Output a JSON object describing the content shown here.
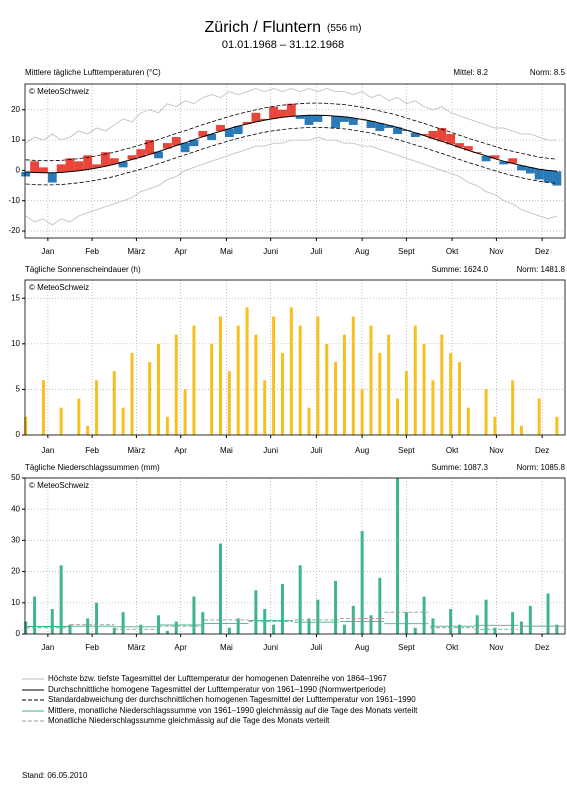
{
  "header": {
    "title": "Zürich / Fluntern",
    "elevation": "(556 m)",
    "subtitle": "01.01.1968 – 31.12.1968"
  },
  "chart_data": [
    {
      "type": "anomaly",
      "title": "Mittlere tägliche Lufttemperaturen (°C)",
      "stats": [
        "Mittel: 8.2",
        "Norm: 8.5"
      ],
      "note": "© MeteoSchweiz",
      "x": [
        1,
        7,
        13,
        19,
        25,
        31,
        37,
        43,
        49,
        55,
        61,
        67,
        73,
        79,
        85,
        91,
        97,
        103,
        109,
        115,
        121,
        127,
        133,
        139,
        145,
        151,
        157,
        163,
        169,
        175,
        181,
        187,
        193,
        199,
        205,
        211,
        217,
        223,
        229,
        235,
        241,
        247,
        253,
        259,
        265,
        271,
        277,
        283,
        289,
        295,
        301,
        307,
        313,
        319,
        325,
        331,
        337,
        343,
        349,
        355,
        361
      ],
      "values": [
        -2,
        3,
        1,
        -4,
        2,
        4,
        3,
        5,
        2,
        6,
        4,
        1,
        5,
        7,
        10,
        4,
        9,
        11,
        6,
        8,
        13,
        10,
        15,
        11,
        12,
        16,
        19,
        17,
        21,
        20,
        22,
        17,
        15,
        16,
        18,
        14,
        16,
        15,
        17,
        14,
        13,
        14,
        12,
        13,
        11,
        12,
        13,
        14,
        12,
        9,
        8,
        6,
        3,
        5,
        2,
        4,
        0,
        -1,
        -3,
        -4,
        -5
      ],
      "normal": [
        -0.5,
        -0.7,
        -0.8,
        -0.8,
        -0.7,
        -0.4,
        -0.1,
        0.3,
        0.8,
        1.4,
        2.0,
        2.8,
        3.6,
        4.4,
        5.3,
        6.2,
        7.2,
        8.2,
        9.1,
        10.1,
        11.1,
        12.0,
        12.9,
        13.8,
        14.6,
        15.3,
        16.0,
        16.6,
        17.1,
        17.5,
        17.8,
        18.0,
        18.2,
        18.2,
        18.1,
        17.9,
        17.7,
        17.3,
        16.8,
        16.3,
        15.6,
        14.9,
        14.2,
        13.3,
        12.4,
        11.5,
        10.5,
        9.6,
        8.6,
        7.6,
        6.6,
        5.7,
        4.8,
        3.9,
        3.0,
        2.3,
        1.6,
        1.0,
        0.4,
        0.0,
        -0.3
      ],
      "sd_upper": [
        3.5,
        3.3,
        3.2,
        3.2,
        3.3,
        3.6,
        3.9,
        4.3,
        4.8,
        5.4,
        6.0,
        6.8,
        7.6,
        8.4,
        9.3,
        10.2,
        11.2,
        12.2,
        13.1,
        14.1,
        15.1,
        16.0,
        16.9,
        17.8,
        18.6,
        19.3,
        20.0,
        20.6,
        21.1,
        21.5,
        21.8,
        22.0,
        22.2,
        22.2,
        22.1,
        21.9,
        21.7,
        21.3,
        20.8,
        20.3,
        19.6,
        18.9,
        18.2,
        17.3,
        16.4,
        15.5,
        14.5,
        13.6,
        12.6,
        11.6,
        10.6,
        9.7,
        8.8,
        7.9,
        7.0,
        6.3,
        5.6,
        5.0,
        4.4,
        4.0,
        3.7
      ],
      "sd_lower": [
        -4.5,
        -4.7,
        -4.8,
        -4.8,
        -4.7,
        -4.4,
        -4.1,
        -3.7,
        -3.2,
        -2.6,
        -2.0,
        -1.2,
        -0.4,
        0.4,
        1.3,
        2.2,
        3.2,
        4.2,
        5.1,
        6.1,
        7.1,
        8.0,
        8.9,
        9.8,
        10.6,
        11.3,
        12.0,
        12.6,
        13.1,
        13.5,
        13.8,
        14.0,
        14.2,
        14.2,
        14.1,
        13.9,
        13.7,
        13.3,
        12.8,
        12.3,
        11.6,
        10.9,
        10.2,
        9.3,
        8.4,
        7.5,
        6.5,
        5.6,
        4.6,
        3.6,
        2.6,
        1.7,
        0.8,
        -0.1,
        -1.0,
        -1.7,
        -2.4,
        -3.0,
        -3.6,
        -4.0,
        -4.3
      ],
      "record_max": [
        9,
        11,
        10,
        12,
        10,
        11,
        13,
        12,
        14,
        13,
        15,
        17,
        16,
        19,
        20,
        19,
        22,
        21,
        23,
        22,
        24,
        25,
        24,
        26,
        25,
        26,
        27,
        26,
        27,
        26,
        27,
        26,
        27,
        26,
        27,
        26,
        26,
        25,
        26,
        24,
        25,
        23,
        24,
        22,
        23,
        21,
        20,
        21,
        19,
        18,
        17,
        16,
        15,
        14,
        14,
        13,
        12,
        12,
        11,
        10,
        10
      ],
      "record_min": [
        -15,
        -17,
        -16,
        -18,
        -16,
        -17,
        -15,
        -14,
        -13,
        -12,
        -11,
        -10,
        -9,
        -7,
        -6,
        -5,
        -3,
        -2,
        0,
        1,
        2,
        3,
        4,
        5,
        6,
        7,
        8,
        8,
        9,
        9,
        10,
        10,
        10,
        11,
        10,
        10,
        9,
        9,
        8,
        8,
        7,
        6,
        5,
        4,
        3,
        2,
        1,
        0,
        -1,
        -2,
        -4,
        -5,
        -7,
        -8,
        -10,
        -11,
        -13,
        -14,
        -15,
        -16,
        -15
      ],
      "above_color": "#e8463a",
      "below_color": "#2a7ab8",
      "record_color": "#bbbbbb",
      "xlim": [
        0.5,
        366.5
      ],
      "ylim": [
        -22.3,
        28.5
      ],
      "yticks": [
        -20,
        -10,
        0,
        10,
        20
      ],
      "xticks": [
        {
          "value": 16,
          "label": "Jan"
        },
        {
          "value": 46,
          "label": "Feb"
        },
        {
          "value": 76,
          "label": "März"
        },
        {
          "value": 106,
          "label": "Apr"
        },
        {
          "value": 137,
          "label": "Mai"
        },
        {
          "value": 167,
          "label": "Juni"
        },
        {
          "value": 198,
          "label": "Juli"
        },
        {
          "value": 229,
          "label": "Aug"
        },
        {
          "value": 259,
          "label": "Sept"
        },
        {
          "value": 290,
          "label": "Okt"
        },
        {
          "value": 320,
          "label": "Nov"
        },
        {
          "value": 351,
          "label": "Dez"
        }
      ],
      "grid": true
    },
    {
      "type": "bar",
      "title": "Tägliche Sonnenscheindauer (h)",
      "stats": [
        "Summe: 1624.0",
        "Norm: 1481.8"
      ],
      "note": "© MeteoSchweiz",
      "x": [
        1,
        7,
        13,
        19,
        25,
        31,
        37,
        43,
        49,
        55,
        61,
        67,
        73,
        79,
        85,
        91,
        97,
        103,
        109,
        115,
        121,
        127,
        133,
        139,
        145,
        151,
        157,
        163,
        169,
        175,
        181,
        187,
        193,
        199,
        205,
        211,
        217,
        223,
        229,
        235,
        241,
        247,
        253,
        259,
        265,
        271,
        277,
        283,
        289,
        295,
        301,
        307,
        313,
        319,
        325,
        331,
        337,
        343,
        349,
        355,
        361
      ],
      "values": [
        2,
        0,
        6,
        0,
        3,
        0,
        4,
        1,
        6,
        0,
        7,
        3,
        9,
        0,
        8,
        10,
        2,
        11,
        5,
        12,
        0,
        10,
        13,
        7,
        12,
        14,
        11,
        6,
        13,
        9,
        14,
        12,
        3,
        13,
        10,
        8,
        11,
        13,
        5,
        12,
        9,
        11,
        4,
        7,
        12,
        10,
        6,
        11,
        9,
        8,
        3,
        0,
        5,
        2,
        0,
        6,
        1,
        0,
        4,
        0,
        2
      ],
      "color": "#f7c020",
      "xlim": [
        0.5,
        366.5
      ],
      "ylim": [
        0,
        17
      ],
      "yticks": [
        0,
        5,
        10,
        15
      ],
      "xticks": [
        {
          "value": 16,
          "label": "Jan"
        },
        {
          "value": 46,
          "label": "Feb"
        },
        {
          "value": 76,
          "label": "März"
        },
        {
          "value": 106,
          "label": "Apr"
        },
        {
          "value": 137,
          "label": "Mai"
        },
        {
          "value": 167,
          "label": "Juni"
        },
        {
          "value": 198,
          "label": "Juli"
        },
        {
          "value": 229,
          "label": "Aug"
        },
        {
          "value": 259,
          "label": "Sept"
        },
        {
          "value": 290,
          "label": "Okt"
        },
        {
          "value": 320,
          "label": "Nov"
        },
        {
          "value": 351,
          "label": "Dez"
        }
      ],
      "grid": true
    },
    {
      "type": "bar",
      "title": "Tägliche Niederschlagssummen (mm)",
      "stats": [
        "Summe: 1087.3",
        "Norm: 1085.8"
      ],
      "note": "© MeteoSchweiz",
      "x": [
        1,
        7,
        13,
        19,
        25,
        31,
        37,
        43,
        49,
        55,
        61,
        67,
        73,
        79,
        85,
        91,
        97,
        103,
        109,
        115,
        121,
        127,
        133,
        139,
        145,
        151,
        157,
        163,
        169,
        175,
        181,
        187,
        193,
        199,
        205,
        211,
        217,
        223,
        229,
        235,
        241,
        247,
        253,
        259,
        265,
        271,
        277,
        283,
        289,
        295,
        301,
        307,
        313,
        319,
        325,
        331,
        337,
        343,
        349,
        355,
        361
      ],
      "values": [
        4,
        12,
        0,
        8,
        22,
        3,
        0,
        5,
        10,
        0,
        2,
        7,
        0,
        3,
        0,
        6,
        1,
        4,
        0,
        12,
        7,
        0,
        29,
        2,
        5,
        0,
        14,
        8,
        3,
        16,
        0,
        22,
        5,
        11,
        0,
        17,
        3,
        9,
        33,
        6,
        18,
        0,
        50,
        7,
        2,
        12,
        5,
        0,
        8,
        3,
        0,
        6,
        11,
        2,
        0,
        7,
        4,
        9,
        0,
        13,
        3
      ],
      "normal_monthly": [
        2.4,
        2.5,
        2.3,
        2.9,
        3.4,
        4.3,
        3.8,
        4.0,
        3.3,
        2.5,
        2.8,
        2.5
      ],
      "monthly": [
        2.0,
        3.0,
        1.5,
        2.5,
        4.5,
        4.0,
        4.5,
        5.0,
        7.0,
        2.0,
        1.5,
        2.5
      ],
      "color": "#3fb58f",
      "xlim": [
        0.5,
        366.5
      ],
      "ylim": [
        0,
        50
      ],
      "yticks": [
        0,
        10,
        20,
        30,
        40,
        50
      ],
      "xticks": [
        {
          "value": 16,
          "label": "Jan"
        },
        {
          "value": 46,
          "label": "Feb"
        },
        {
          "value": 76,
          "label": "März"
        },
        {
          "value": 106,
          "label": "Apr"
        },
        {
          "value": 137,
          "label": "Mai"
        },
        {
          "value": 167,
          "label": "Juni"
        },
        {
          "value": 198,
          "label": "Juli"
        },
        {
          "value": 229,
          "label": "Aug"
        },
        {
          "value": 259,
          "label": "Sept"
        },
        {
          "value": 290,
          "label": "Okt"
        },
        {
          "value": 320,
          "label": "Nov"
        },
        {
          "value": 351,
          "label": "Dez"
        }
      ],
      "grid": true
    }
  ],
  "legend": [
    "Höchste bzw. tiefste Tagesmittel der Lufttemperatur der homogenen Datenreihe von 1864–1967",
    "Durchschnittliche homogene Tagesmittel der Lufttemperatur von 1961–1990 (Normwertperiode)",
    "Standardabweichung der durchschnittlichen homogenen Tagesmittel der Lufttemperatur von 1961–1990",
    "Mittlere, monatliche Niederschlagssumme von 1961–1990 gleichmässig auf die Tage des Monats verteilt",
    "Monatliche Niederschlagssumme gleichmässig auf die Tage des Monats verteilt"
  ],
  "footer": "Stand: 06.05.2010"
}
